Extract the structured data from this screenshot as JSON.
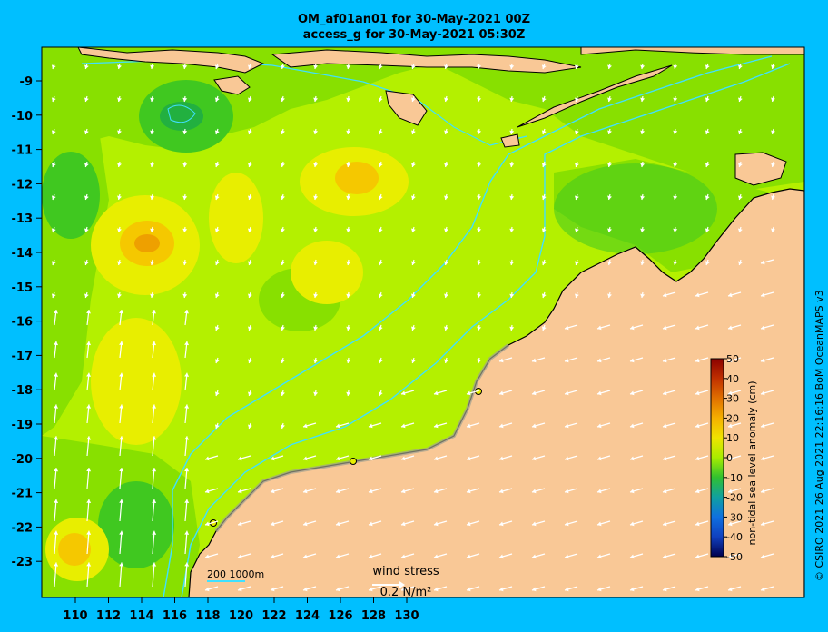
{
  "title": {
    "line1": "OM_af01an01 for 30-May-2021 00Z",
    "line2": "access_g for 30-May-2021 05:30Z"
  },
  "axes": {
    "lon_ticks": [
      "110",
      "112",
      "114",
      "116",
      "118",
      "120",
      "122",
      "124",
      "126",
      "128",
      "130"
    ],
    "lat_ticks": [
      "-9",
      "-10",
      "-11",
      "-12",
      "-13",
      "-14",
      "-15",
      "-16",
      "-17",
      "-18",
      "-19",
      "-20",
      "-21",
      "-22",
      "-23"
    ]
  },
  "colorbar": {
    "title": "non-tidal sea level anomaly (cm)",
    "labels": [
      "50",
      "40",
      "30",
      "20",
      "10",
      "0",
      "-10",
      "-20",
      "-30",
      "-40",
      "-50"
    ],
    "colors": [
      "#8b0000",
      "#b22000",
      "#d04a00",
      "#e07800",
      "#eea000",
      "#f5c800",
      "#f0e400",
      "#c8f000",
      "#96e600",
      "#50d000",
      "#22b830",
      "#10a870",
      "#0aa0a0",
      "#1090c8",
      "#1070e0",
      "#1050d0",
      "#1030b0",
      "#001a90",
      "#000a70",
      "#00004e"
    ]
  },
  "legend": {
    "depth_labels": "200  1000m",
    "wind_stress_label": "wind stress",
    "wind_stress_value": "0.2 N/m²"
  },
  "credit": "© CSIRO 2021  26 Aug 2021 22:16:16 BoM OceanMAPS v3",
  "palette": {
    "background": "#00bfff",
    "land": "#f9c896",
    "sea_base": "#b4f000",
    "sea_green": "#88e000",
    "sea_darkgreen": "#40c820",
    "sea_yellow": "#e8ee00",
    "sea_orange": "#f5c800",
    "isobath": "#40e0ff"
  }
}
